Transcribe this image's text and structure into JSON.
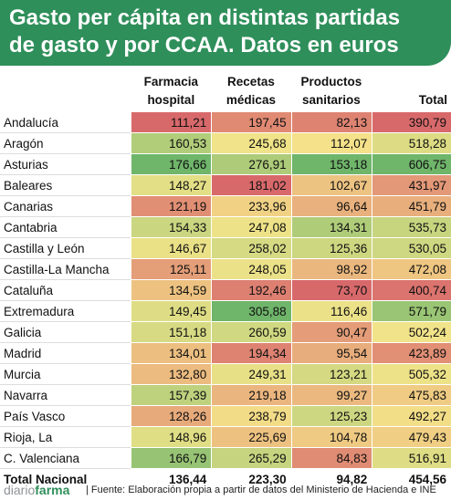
{
  "title_line1": "Gasto per cápita en distintas partidas",
  "title_line2": "de gasto y por CCAA. Datos en euros",
  "chart_data": {
    "type": "table",
    "columns": [
      {
        "line1": "Farmacia",
        "line2": "hospital"
      },
      {
        "line1": "Recetas",
        "line2": "médicas"
      },
      {
        "line1": "Productos",
        "line2": "sanitarios"
      },
      {
        "line1": "",
        "line2": "Total"
      }
    ],
    "rows": [
      {
        "region": "Andalucía",
        "values": [
          "111,21",
          "197,45",
          "82,13",
          "390,79"
        ]
      },
      {
        "region": "Aragón",
        "values": [
          "160,53",
          "245,68",
          "112,07",
          "518,28"
        ]
      },
      {
        "region": "Asturias",
        "values": [
          "176,66",
          "276,91",
          "153,18",
          "606,75"
        ]
      },
      {
        "region": "Baleares",
        "values": [
          "148,27",
          "181,02",
          "102,67",
          "431,97"
        ]
      },
      {
        "region": "Canarias",
        "values": [
          "121,19",
          "233,96",
          "96,64",
          "451,79"
        ]
      },
      {
        "region": "Cantabria",
        "values": [
          "154,33",
          "247,08",
          "134,31",
          "535,73"
        ]
      },
      {
        "region": "Castilla y León",
        "values": [
          "146,67",
          "258,02",
          "125,36",
          "530,05"
        ]
      },
      {
        "region": "Castilla-La Mancha",
        "values": [
          "125,11",
          "248,05",
          "98,92",
          "472,08"
        ]
      },
      {
        "region": "Cataluña",
        "values": [
          "134,59",
          "192,46",
          "73,70",
          "400,74"
        ]
      },
      {
        "region": "Extremadura",
        "values": [
          "149,45",
          "305,88",
          "116,46",
          "571,79"
        ]
      },
      {
        "region": "Galicia",
        "values": [
          "151,18",
          "260,59",
          "90,47",
          "502,24"
        ]
      },
      {
        "region": "Madrid",
        "values": [
          "134,01",
          "194,34",
          "95,54",
          "423,89"
        ]
      },
      {
        "region": "Murcia",
        "values": [
          "132,80",
          "249,31",
          "123,21",
          "505,32"
        ]
      },
      {
        "region": "Navarra",
        "values": [
          "157,39",
          "219,18",
          "99,27",
          "475,83"
        ]
      },
      {
        "region": "País Vasco",
        "values": [
          "128,26",
          "238,79",
          "125,23",
          "492,27"
        ]
      },
      {
        "region": "Rioja, La",
        "values": [
          "148,96",
          "225,69",
          "104,78",
          "479,43"
        ]
      },
      {
        "region": "C. Valenciana",
        "values": [
          "166,79",
          "265,29",
          "84,83",
          "516,91"
        ]
      }
    ],
    "national": {
      "region": "Total Nacional",
      "values": [
        "136,44",
        "223,30",
        "94,82",
        "454,56"
      ]
    },
    "color_scale": {
      "low": "#d8696b",
      "mid": "#f5e58a",
      "high": "#6fb56a"
    }
  },
  "footer": {
    "brand_a": "diario",
    "brand_b": "farma",
    "source": "| Fuente: Elaboración propia a partir de datos del Ministerio de Hacienda e INE"
  }
}
